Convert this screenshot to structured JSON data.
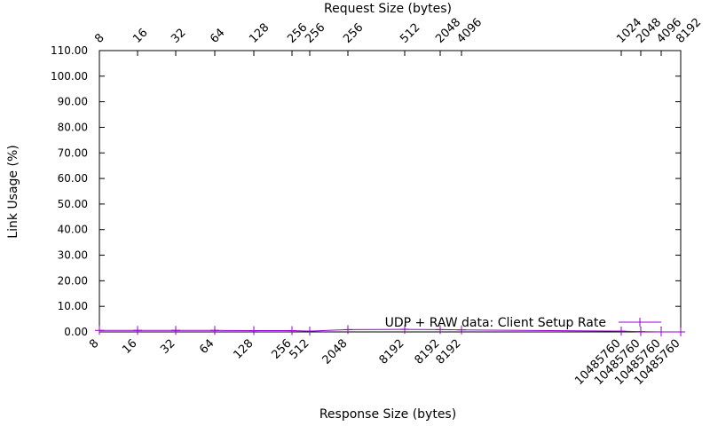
{
  "chart_data": {
    "type": "line",
    "xlabel": "Response Size (bytes)",
    "x2label": "Request Size (bytes)",
    "ylabel": "Link Usage (%)",
    "ylim": [
      0,
      110
    ],
    "grid": false,
    "legend_position": "bottom-right",
    "series_color": "#9400d3",
    "bottom_ticks": [
      "8",
      "16",
      "32",
      "64",
      "128",
      "256",
      "512",
      "2048",
      "8192",
      "8192",
      "8192",
      "10485760",
      "10485760",
      "10485760",
      "10485760"
    ],
    "top_ticks": [
      "8",
      "16",
      "32",
      "64",
      "128",
      "256",
      "256",
      "256",
      "512",
      "2048",
      "4096",
      "1024",
      "2048",
      "4096",
      "8192"
    ],
    "y_ticks": [
      "0.00",
      "10.00",
      "20.00",
      "30.00",
      "40.00",
      "50.00",
      "60.00",
      "70.00",
      "80.00",
      "90.00",
      "100.00",
      "110.00"
    ],
    "series": [
      {
        "name": "UDP + RAW data: Client Setup Rate",
        "x": [
          0,
          1,
          2,
          3,
          4,
          5,
          6,
          7,
          8,
          9,
          10,
          11,
          12,
          13,
          14
        ],
        "values": [
          0.6,
          0.6,
          0.6,
          0.6,
          0.5,
          0.5,
          0.3,
          0.9,
          1.0,
          0.9,
          0.8,
          0.3,
          0.1,
          0.0,
          0.0
        ]
      }
    ]
  }
}
